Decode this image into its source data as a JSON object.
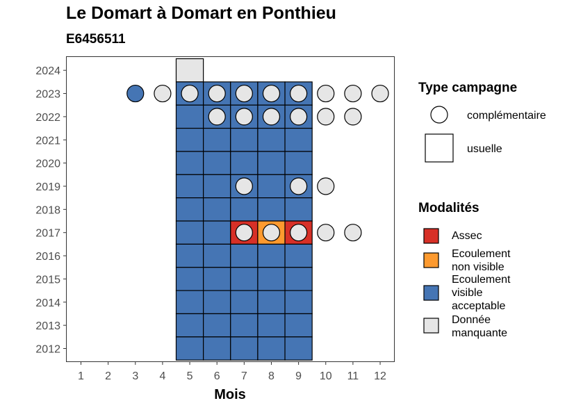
{
  "chart_data": {
    "type": "heatmap",
    "title": "Le Domart à Domart en Ponthieu",
    "subtitle": "E6456511",
    "xlabel": "Mois",
    "ylabel": "",
    "x_ticks": [
      "1",
      "2",
      "3",
      "4",
      "5",
      "6",
      "7",
      "8",
      "9",
      "10",
      "11",
      "12"
    ],
    "y_ticks": [
      "2012",
      "2013",
      "2014",
      "2015",
      "2016",
      "2017",
      "2018",
      "2019",
      "2020",
      "2021",
      "2022",
      "2023",
      "2024"
    ],
    "xlim": [
      0.5,
      12.5
    ],
    "ylim": [
      2011.5,
      2024.5
    ],
    "grid": false,
    "legend_placement": "right",
    "legend_type": {
      "title": "Type campagne",
      "entries": [
        {
          "label": "complémentaire",
          "shape": "circle"
        },
        {
          "label": "usuelle",
          "shape": "square"
        }
      ]
    },
    "legend_modalites": {
      "title": "Modalités",
      "entries": [
        {
          "key": "assec",
          "lines": [
            "Assec"
          ],
          "color": "#d73027"
        },
        {
          "key": "ecoulement_non_visible",
          "lines": [
            "Ecoulement",
            "non visible"
          ],
          "color": "#fd9a2f"
        },
        {
          "key": "ecoulement_visible",
          "lines": [
            "Ecoulement",
            "visible",
            "acceptable"
          ],
          "color": "#4575b4"
        },
        {
          "key": "donnee_manquante",
          "lines": [
            "Donnée",
            "manquante"
          ],
          "color": "#e6e6e6"
        }
      ]
    },
    "usuelle_points": [
      {
        "month": 5,
        "year": 2024,
        "modalite": "donnee_manquante"
      },
      {
        "month": 5,
        "year": 2023,
        "modalite": "ecoulement_visible"
      },
      {
        "month": 6,
        "year": 2023,
        "modalite": "ecoulement_visible"
      },
      {
        "month": 7,
        "year": 2023,
        "modalite": "ecoulement_visible"
      },
      {
        "month": 8,
        "year": 2023,
        "modalite": "ecoulement_visible"
      },
      {
        "month": 9,
        "year": 2023,
        "modalite": "ecoulement_visible"
      },
      {
        "month": 5,
        "year": 2022,
        "modalite": "ecoulement_visible"
      },
      {
        "month": 6,
        "year": 2022,
        "modalite": "ecoulement_visible"
      },
      {
        "month": 7,
        "year": 2022,
        "modalite": "ecoulement_visible"
      },
      {
        "month": 8,
        "year": 2022,
        "modalite": "ecoulement_visible"
      },
      {
        "month": 9,
        "year": 2022,
        "modalite": "ecoulement_visible"
      },
      {
        "month": 5,
        "year": 2021,
        "modalite": "ecoulement_visible"
      },
      {
        "month": 6,
        "year": 2021,
        "modalite": "ecoulement_visible"
      },
      {
        "month": 7,
        "year": 2021,
        "modalite": "ecoulement_visible"
      },
      {
        "month": 8,
        "year": 2021,
        "modalite": "ecoulement_visible"
      },
      {
        "month": 9,
        "year": 2021,
        "modalite": "ecoulement_visible"
      },
      {
        "month": 5,
        "year": 2020,
        "modalite": "ecoulement_visible"
      },
      {
        "month": 6,
        "year": 2020,
        "modalite": "ecoulement_visible"
      },
      {
        "month": 7,
        "year": 2020,
        "modalite": "ecoulement_visible"
      },
      {
        "month": 8,
        "year": 2020,
        "modalite": "ecoulement_visible"
      },
      {
        "month": 9,
        "year": 2020,
        "modalite": "ecoulement_visible"
      },
      {
        "month": 5,
        "year": 2019,
        "modalite": "ecoulement_visible"
      },
      {
        "month": 6,
        "year": 2019,
        "modalite": "ecoulement_visible"
      },
      {
        "month": 7,
        "year": 2019,
        "modalite": "ecoulement_visible"
      },
      {
        "month": 8,
        "year": 2019,
        "modalite": "ecoulement_visible"
      },
      {
        "month": 9,
        "year": 2019,
        "modalite": "ecoulement_visible"
      },
      {
        "month": 5,
        "year": 2018,
        "modalite": "ecoulement_visible"
      },
      {
        "month": 6,
        "year": 2018,
        "modalite": "ecoulement_visible"
      },
      {
        "month": 7,
        "year": 2018,
        "modalite": "ecoulement_visible"
      },
      {
        "month": 8,
        "year": 2018,
        "modalite": "ecoulement_visible"
      },
      {
        "month": 9,
        "year": 2018,
        "modalite": "ecoulement_visible"
      },
      {
        "month": 5,
        "year": 2017,
        "modalite": "ecoulement_visible"
      },
      {
        "month": 6,
        "year": 2017,
        "modalite": "ecoulement_visible"
      },
      {
        "month": 7,
        "year": 2017,
        "modalite": "assec"
      },
      {
        "month": 8,
        "year": 2017,
        "modalite": "ecoulement_non_visible"
      },
      {
        "month": 9,
        "year": 2017,
        "modalite": "assec"
      },
      {
        "month": 5,
        "year": 2016,
        "modalite": "ecoulement_visible"
      },
      {
        "month": 6,
        "year": 2016,
        "modalite": "ecoulement_visible"
      },
      {
        "month": 7,
        "year": 2016,
        "modalite": "ecoulement_visible"
      },
      {
        "month": 8,
        "year": 2016,
        "modalite": "ecoulement_visible"
      },
      {
        "month": 9,
        "year": 2016,
        "modalite": "ecoulement_visible"
      },
      {
        "month": 5,
        "year": 2015,
        "modalite": "ecoulement_visible"
      },
      {
        "month": 6,
        "year": 2015,
        "modalite": "ecoulement_visible"
      },
      {
        "month": 7,
        "year": 2015,
        "modalite": "ecoulement_visible"
      },
      {
        "month": 8,
        "year": 2015,
        "modalite": "ecoulement_visible"
      },
      {
        "month": 9,
        "year": 2015,
        "modalite": "ecoulement_visible"
      },
      {
        "month": 5,
        "year": 2014,
        "modalite": "ecoulement_visible"
      },
      {
        "month": 6,
        "year": 2014,
        "modalite": "ecoulement_visible"
      },
      {
        "month": 7,
        "year": 2014,
        "modalite": "ecoulement_visible"
      },
      {
        "month": 8,
        "year": 2014,
        "modalite": "ecoulement_visible"
      },
      {
        "month": 9,
        "year": 2014,
        "modalite": "ecoulement_visible"
      },
      {
        "month": 5,
        "year": 2013,
        "modalite": "ecoulement_visible"
      },
      {
        "month": 6,
        "year": 2013,
        "modalite": "ecoulement_visible"
      },
      {
        "month": 7,
        "year": 2013,
        "modalite": "ecoulement_visible"
      },
      {
        "month": 8,
        "year": 2013,
        "modalite": "ecoulement_visible"
      },
      {
        "month": 9,
        "year": 2013,
        "modalite": "ecoulement_visible"
      },
      {
        "month": 5,
        "year": 2012,
        "modalite": "ecoulement_visible"
      },
      {
        "month": 6,
        "year": 2012,
        "modalite": "ecoulement_visible"
      },
      {
        "month": 7,
        "year": 2012,
        "modalite": "ecoulement_visible"
      },
      {
        "month": 8,
        "year": 2012,
        "modalite": "ecoulement_visible"
      },
      {
        "month": 9,
        "year": 2012,
        "modalite": "ecoulement_visible"
      }
    ],
    "complementaire_points": [
      {
        "month": 3,
        "year": 2023,
        "modalite": "ecoulement_visible"
      },
      {
        "month": 4,
        "year": 2023,
        "modalite": "donnee_manquante"
      },
      {
        "month": 5,
        "year": 2023,
        "modalite": "donnee_manquante"
      },
      {
        "month": 6,
        "year": 2023,
        "modalite": "donnee_manquante"
      },
      {
        "month": 7,
        "year": 2023,
        "modalite": "donnee_manquante"
      },
      {
        "month": 8,
        "year": 2023,
        "modalite": "donnee_manquante"
      },
      {
        "month": 9,
        "year": 2023,
        "modalite": "donnee_manquante"
      },
      {
        "month": 10,
        "year": 2023,
        "modalite": "donnee_manquante"
      },
      {
        "month": 11,
        "year": 2023,
        "modalite": "donnee_manquante"
      },
      {
        "month": 12,
        "year": 2023,
        "modalite": "donnee_manquante"
      },
      {
        "month": 6,
        "year": 2022,
        "modalite": "donnee_manquante"
      },
      {
        "month": 7,
        "year": 2022,
        "modalite": "donnee_manquante"
      },
      {
        "month": 8,
        "year": 2022,
        "modalite": "donnee_manquante"
      },
      {
        "month": 9,
        "year": 2022,
        "modalite": "donnee_manquante"
      },
      {
        "month": 10,
        "year": 2022,
        "modalite": "donnee_manquante"
      },
      {
        "month": 11,
        "year": 2022,
        "modalite": "donnee_manquante"
      },
      {
        "month": 7,
        "year": 2019,
        "modalite": "donnee_manquante"
      },
      {
        "month": 9,
        "year": 2019,
        "modalite": "donnee_manquante"
      },
      {
        "month": 10,
        "year": 2019,
        "modalite": "donnee_manquante"
      },
      {
        "month": 7,
        "year": 2017,
        "modalite": "donnee_manquante"
      },
      {
        "month": 8,
        "year": 2017,
        "modalite": "donnee_manquante"
      },
      {
        "month": 9,
        "year": 2017,
        "modalite": "donnee_manquante"
      },
      {
        "month": 10,
        "year": 2017,
        "modalite": "donnee_manquante"
      },
      {
        "month": 11,
        "year": 2017,
        "modalite": "donnee_manquante"
      }
    ]
  }
}
